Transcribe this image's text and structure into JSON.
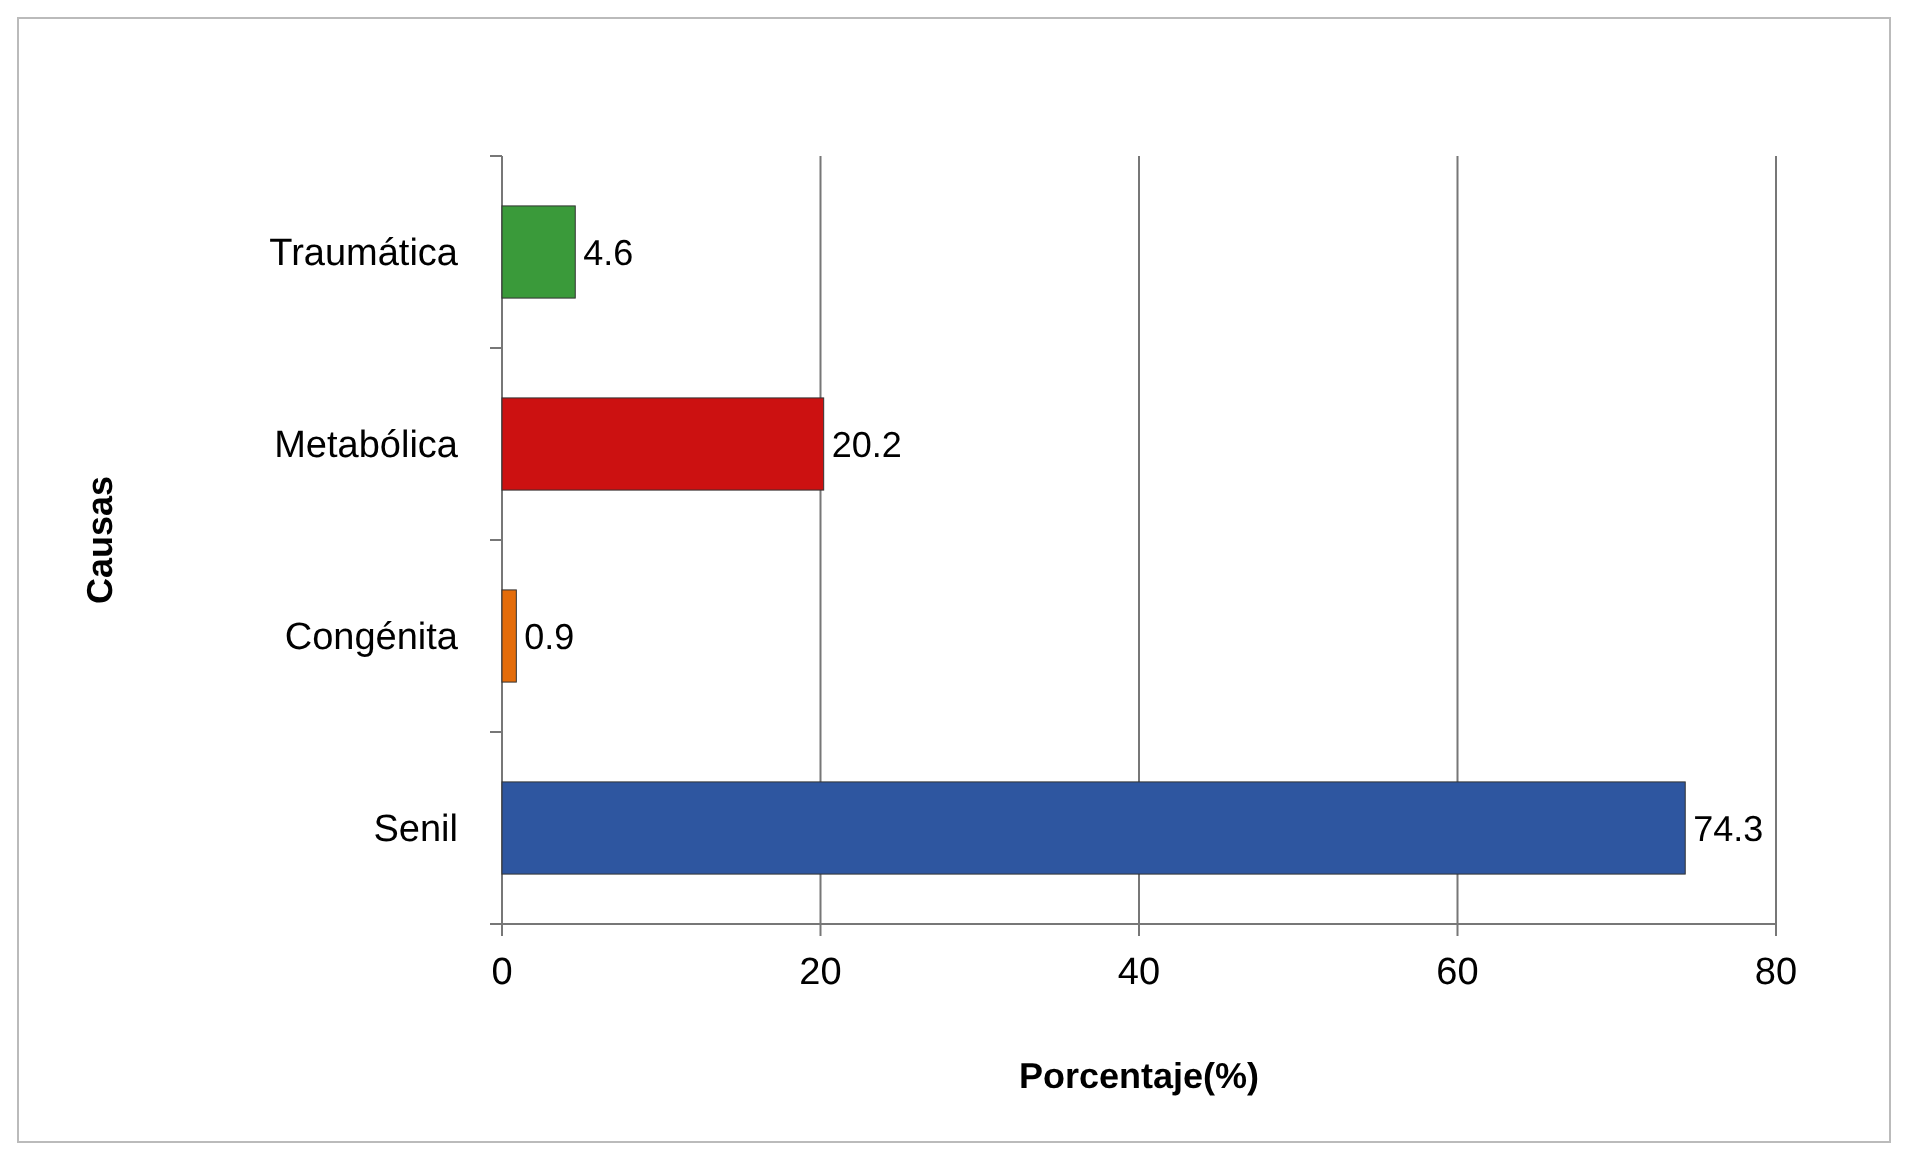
{
  "chart_data": {
    "type": "bar",
    "orientation": "horizontal",
    "xlabel": "Porcentaje(%)",
    "ylabel": "Causas",
    "categories": [
      "Traumática",
      "Metabólica",
      "Congénita",
      "Senil"
    ],
    "values": [
      4.6,
      20.2,
      0.9,
      74.3
    ],
    "colors": [
      "#3a9a3a",
      "#cc1111",
      "#e46c0a",
      "#2e56a0"
    ],
    "xlim": [
      0,
      80
    ],
    "xticks": [
      0,
      20,
      40,
      60,
      80
    ],
    "grid": "x",
    "data_labels": true
  }
}
